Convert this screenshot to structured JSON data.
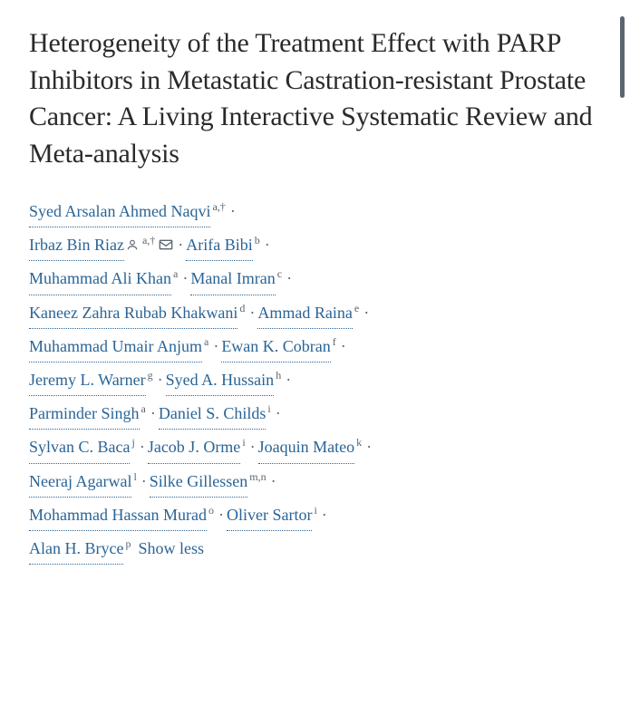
{
  "title": "Heterogeneity of the Treatment Effect with PARP Inhibitors in Metastatic Castration-resistant Prostate Cancer: A Living Interactive Systematic Review and Meta-analysis",
  "colors": {
    "link": "#2a6496",
    "text": "#2a2a2a",
    "aff": "#5a6570",
    "background": "#ffffff",
    "scrollbar": "#5a6570"
  },
  "showless_label": "Show less",
  "authors": [
    {
      "name": "Syed Arsalan Ahmed Naqvi",
      "aff": "a,†",
      "person": false,
      "mail": false
    },
    {
      "name": "Irbaz Bin Riaz",
      "aff": "a,†",
      "person": true,
      "mail": true
    },
    {
      "name": "Arifa Bibi",
      "aff": "b",
      "person": false,
      "mail": false
    },
    {
      "name": "Muhammad Ali Khan",
      "aff": "a",
      "person": false,
      "mail": false
    },
    {
      "name": "Manal Imran",
      "aff": "c",
      "person": false,
      "mail": false
    },
    {
      "name": "Kaneez Zahra Rubab Khakwani",
      "aff": "d",
      "person": false,
      "mail": false
    },
    {
      "name": "Ammad Raina",
      "aff": "e",
      "person": false,
      "mail": false
    },
    {
      "name": "Muhammad Umair Anjum",
      "aff": "a",
      "person": false,
      "mail": false
    },
    {
      "name": "Ewan K. Cobran",
      "aff": "f",
      "person": false,
      "mail": false
    },
    {
      "name": "Jeremy L. Warner",
      "aff": "g",
      "person": false,
      "mail": false
    },
    {
      "name": "Syed A. Hussain",
      "aff": "h",
      "person": false,
      "mail": false
    },
    {
      "name": "Parminder Singh",
      "aff": "a",
      "person": false,
      "mail": false
    },
    {
      "name": "Daniel S. Childs",
      "aff": "i",
      "person": false,
      "mail": false
    },
    {
      "name": "Sylvan C. Baca",
      "aff": "j",
      "person": false,
      "mail": false
    },
    {
      "name": "Jacob J. Orme",
      "aff": "i",
      "person": false,
      "mail": false
    },
    {
      "name": "Joaquin Mateo",
      "aff": "k",
      "person": false,
      "mail": false
    },
    {
      "name": "Neeraj Agarwal",
      "aff": "l",
      "person": false,
      "mail": false
    },
    {
      "name": "Silke Gillessen",
      "aff": "m,n",
      "person": false,
      "mail": false
    },
    {
      "name": "Mohammad Hassan Murad",
      "aff": "o",
      "person": false,
      "mail": false
    },
    {
      "name": "Oliver Sartor",
      "aff": "i",
      "person": false,
      "mail": false
    },
    {
      "name": "Alan H. Bryce",
      "aff": "p",
      "person": false,
      "mail": false
    }
  ],
  "line_breaks_after": [
    0,
    2,
    4,
    6,
    8,
    10,
    12,
    15,
    17,
    19
  ]
}
